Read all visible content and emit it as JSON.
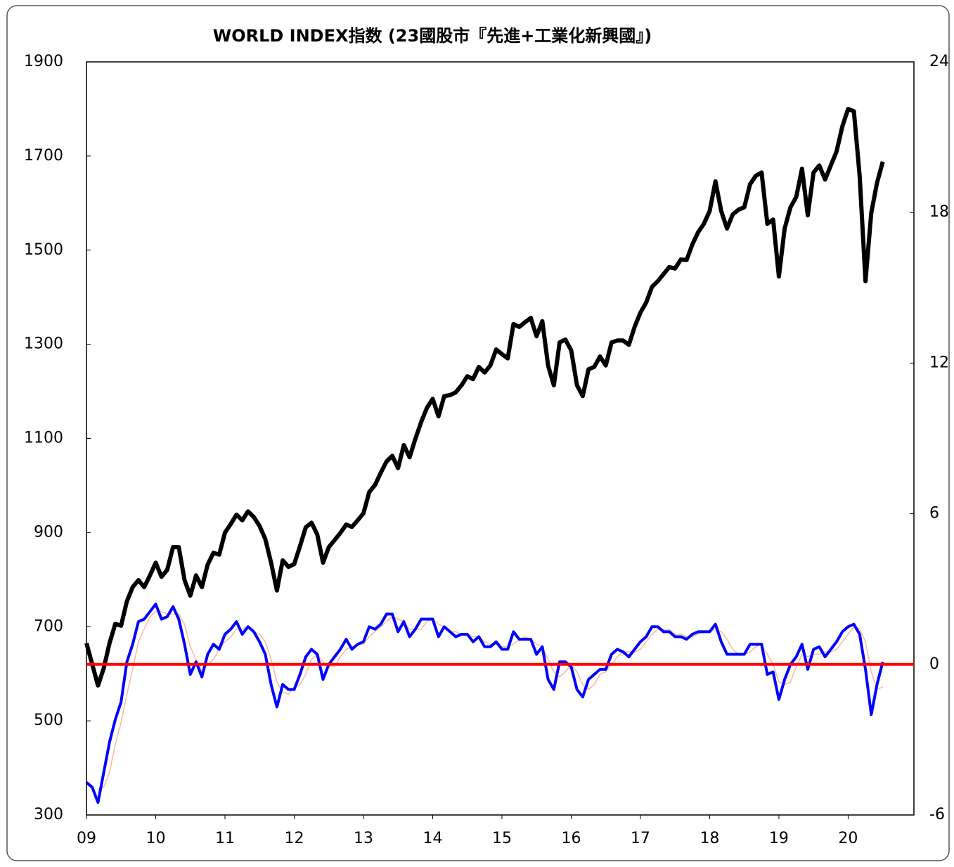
{
  "chart_data": {
    "type": "line",
    "title": "WORLD INDEX指数 (23國股市『先進+工業化新興國』)",
    "x": [
      0,
      1,
      2,
      3,
      4,
      5,
      6,
      7,
      8,
      9,
      10,
      11,
      12,
      13,
      14,
      15,
      16,
      17,
      18,
      19,
      20,
      21,
      22,
      23,
      24,
      25,
      26,
      27,
      28,
      29,
      30,
      31,
      32,
      33,
      34,
      35,
      36,
      37,
      38,
      39,
      40,
      41,
      42,
      43,
      44,
      45,
      46,
      47,
      48,
      49,
      50,
      51,
      52,
      53,
      54,
      55,
      56,
      57,
      58,
      59,
      60,
      61,
      62,
      63,
      64,
      65,
      66,
      67,
      68,
      69,
      70,
      71,
      72,
      73,
      74,
      75,
      76,
      77,
      78,
      79,
      80,
      81,
      82,
      83,
      84,
      85,
      86,
      87,
      88,
      89,
      90,
      91,
      92,
      93,
      94,
      95,
      96,
      97,
      98,
      99,
      100,
      101,
      102,
      103,
      104,
      105,
      106,
      107,
      108,
      109,
      110,
      111,
      112,
      113,
      114,
      115,
      116,
      117,
      118,
      119,
      120,
      121,
      122,
      123,
      124,
      125,
      126,
      127,
      128,
      129,
      130,
      131,
      132,
      133,
      134,
      135,
      136,
      137,
      138
    ],
    "xlim": [
      0,
      143.4
    ],
    "xticks": [
      {
        "value": 0,
        "label": "09"
      },
      {
        "value": 12,
        "label": "10"
      },
      {
        "value": 24,
        "label": "11"
      },
      {
        "value": 36,
        "label": "12"
      },
      {
        "value": 48,
        "label": "13"
      },
      {
        "value": 60,
        "label": "14"
      },
      {
        "value": 72,
        "label": "15"
      },
      {
        "value": 84,
        "label": "16"
      },
      {
        "value": 96,
        "label": "17"
      },
      {
        "value": 108,
        "label": "18"
      },
      {
        "value": 120,
        "label": "19"
      },
      {
        "value": 132,
        "label": "20"
      }
    ],
    "ylim": [
      300,
      1900
    ],
    "yticks": [
      300,
      500,
      700,
      900,
      1100,
      1300,
      1500,
      1700,
      1900
    ],
    "y2lim": [
      -6,
      24
    ],
    "y2ticks": [
      -6,
      0,
      6,
      12,
      18,
      24
    ],
    "reference_line": {
      "value": 0,
      "axis": "y2",
      "color": "#ff0000"
    },
    "series": [
      {
        "color": "#000000",
        "axis": "y",
        "values": [
          665,
          620,
          575,
          612,
          665,
          706,
          702,
          754,
          784,
          799,
          784,
          809,
          836,
          806,
          821,
          869,
          869,
          799,
          766,
          809,
          784,
          832,
          857,
          853,
          900,
          918,
          938,
          926,
          945,
          933,
          914,
          886,
          836,
          777,
          841,
          827,
          833,
          871,
          911,
          921,
          896,
          836,
          869,
          884,
          899,
          917,
          912,
          926,
          941,
          986,
          1001,
          1027,
          1051,
          1063,
          1037,
          1086,
          1060,
          1099,
          1135,
          1165,
          1184,
          1147,
          1190,
          1192,
          1198,
          1213,
          1232,
          1226,
          1252,
          1240,
          1255,
          1289,
          1279,
          1270,
          1343,
          1337,
          1347,
          1356,
          1317,
          1349,
          1255,
          1213,
          1304,
          1310,
          1287,
          1213,
          1190,
          1247,
          1252,
          1274,
          1255,
          1304,
          1308,
          1308,
          1299,
          1337,
          1367,
          1389,
          1422,
          1434,
          1449,
          1464,
          1461,
          1480,
          1479,
          1512,
          1538,
          1556,
          1583,
          1646,
          1583,
          1546,
          1576,
          1586,
          1591,
          1640,
          1658,
          1665,
          1556,
          1565,
          1444,
          1546,
          1591,
          1613,
          1673,
          1574,
          1665,
          1680,
          1650,
          1680,
          1710,
          1763,
          1800,
          1795,
          1658,
          1434,
          1579,
          1643,
          1688
        ]
      },
      {
        "color": "#0000ff",
        "axis": "y2",
        "values": [
          -4.7,
          -4.9,
          -5.5,
          -4.3,
          -3.1,
          -2.2,
          -1.5,
          0.1,
          0.8,
          1.7,
          1.8,
          2.1,
          2.4,
          1.8,
          1.9,
          2.3,
          1.8,
          0.8,
          -0.4,
          0.1,
          -0.5,
          0.4,
          0.8,
          0.6,
          1.2,
          1.4,
          1.7,
          1.2,
          1.5,
          1.3,
          0.9,
          0.4,
          -0.8,
          -1.7,
          -0.8,
          -1.0,
          -1.0,
          -0.4,
          0.3,
          0.6,
          0.4,
          -0.6,
          0,
          0.3,
          0.6,
          1.0,
          0.6,
          0.8,
          0.9,
          1.5,
          1.4,
          1.6,
          2.0,
          2.0,
          1.3,
          1.7,
          1.1,
          1.4,
          1.8,
          1.8,
          1.8,
          1.1,
          1.5,
          1.3,
          1.1,
          1.2,
          1.2,
          0.9,
          1.1,
          0.7,
          0.7,
          0.9,
          0.6,
          0.6,
          1.3,
          1.0,
          1.0,
          1.0,
          0.4,
          0.7,
          -0.6,
          -1.0,
          0.1,
          0.1,
          -0.1,
          -1.0,
          -1.3,
          -0.6,
          -0.4,
          -0.2,
          -0.2,
          0.4,
          0.6,
          0.5,
          0.3,
          0.6,
          0.9,
          1.1,
          1.5,
          1.5,
          1.3,
          1.3,
          1.1,
          1.1,
          1.0,
          1.2,
          1.3,
          1.3,
          1.3,
          1.6,
          0.9,
          0.4,
          0.4,
          0.4,
          0.4,
          0.8,
          0.8,
          0.8,
          -0.4,
          -0.3,
          -1.4,
          -0.6,
          0,
          0.3,
          0.8,
          -0.2,
          0.6,
          0.7,
          0.3,
          0.6,
          0.9,
          1.3,
          1.5,
          1.6,
          1.2,
          -0.2,
          -2.0,
          -0.8,
          0.1
        ]
      },
      {
        "color": "#f7b89a",
        "axis": "y2",
        "values": [
          null,
          null,
          -5.0,
          -4.9,
          -4.3,
          -3.2,
          -2.3,
          -1.2,
          -0.2,
          0.9,
          1.4,
          1.9,
          2.1,
          2.1,
          2.0,
          2.0,
          2.0,
          1.6,
          0.7,
          0.2,
          -0.3,
          0.0,
          0.2,
          0.6,
          0.9,
          1.1,
          1.4,
          1.4,
          1.5,
          1.3,
          1.2,
          0.9,
          0.2,
          -0.7,
          -1.1,
          -1.2,
          -0.9,
          -0.8,
          -0.4,
          0.2,
          0.4,
          0.1,
          -0.1,
          -0.1,
          0.3,
          0.6,
          0.7,
          0.8,
          0.8,
          1.1,
          1.3,
          1.5,
          1.7,
          1.9,
          1.8,
          1.7,
          1.4,
          1.4,
          1.4,
          1.7,
          1.8,
          1.6,
          1.5,
          1.3,
          1.3,
          1.2,
          1.2,
          1.1,
          1.1,
          0.9,
          0.8,
          0.8,
          0.7,
          0.7,
          0.8,
          1.0,
          1.1,
          1.0,
          0.8,
          0.7,
          0.2,
          -0.3,
          -0.5,
          -0.3,
          0.0,
          -0.3,
          -0.8,
          -1.0,
          -0.8,
          -0.4,
          -0.3,
          0.0,
          0.3,
          0.5,
          0.5,
          0.5,
          0.6,
          0.9,
          1.2,
          1.4,
          1.4,
          1.4,
          1.2,
          1.2,
          1.1,
          1.1,
          1.2,
          1.3,
          1.3,
          1.4,
          1.3,
          1.0,
          0.6,
          0.4,
          0.4,
          0.5,
          0.7,
          0.8,
          0.4,
          0.0,
          -0.7,
          -0.8,
          -0.7,
          -0.1,
          0.4,
          0.3,
          0.4,
          0.4,
          0.5,
          0.5,
          0.6,
          0.9,
          1.2,
          1.5,
          1.4,
          0.9,
          -0.3,
          -1.0,
          -0.9
        ]
      }
    ]
  }
}
